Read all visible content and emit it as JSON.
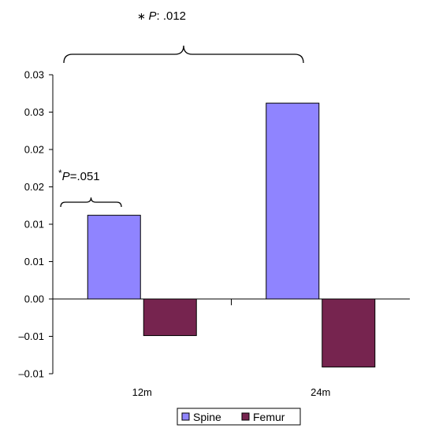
{
  "chart_data": {
    "type": "bar",
    "title": "",
    "xlabel": "",
    "ylabel": "",
    "categories": [
      "12m",
      "24m"
    ],
    "series": [
      {
        "name": "Spine",
        "color": "#8f84ff",
        "values": [
          0.0112,
          0.0262
        ]
      },
      {
        "name": "Femur",
        "color": "#76244f",
        "values": [
          -0.0049,
          -0.0091
        ]
      }
    ],
    "ylim": [
      -0.01,
      0.03
    ],
    "yticks": [
      {
        "value": 0.03,
        "label": "0.03"
      },
      {
        "value": 0.025,
        "label": "0.03"
      },
      {
        "value": 0.02,
        "label": "0.02"
      },
      {
        "value": 0.015,
        "label": "0.02"
      },
      {
        "value": 0.01,
        "label": "0.01"
      },
      {
        "value": 0.005,
        "label": "0.01"
      },
      {
        "value": 0.0,
        "label": "0.00"
      },
      {
        "value": -0.005,
        "label": "–0.01"
      },
      {
        "value": -0.01,
        "label": "–0.01"
      }
    ],
    "grid": false,
    "legend_position": "bottom-center",
    "annotations": [
      {
        "name": "annot-24m",
        "star": "∗ ",
        "italic": "P",
        "rest": ": .012",
        "spans": "12m–24m"
      },
      {
        "name": "annot-12m",
        "star": "*",
        "italic": "P",
        "rest": "=.051",
        "spans": "12m"
      }
    ]
  }
}
